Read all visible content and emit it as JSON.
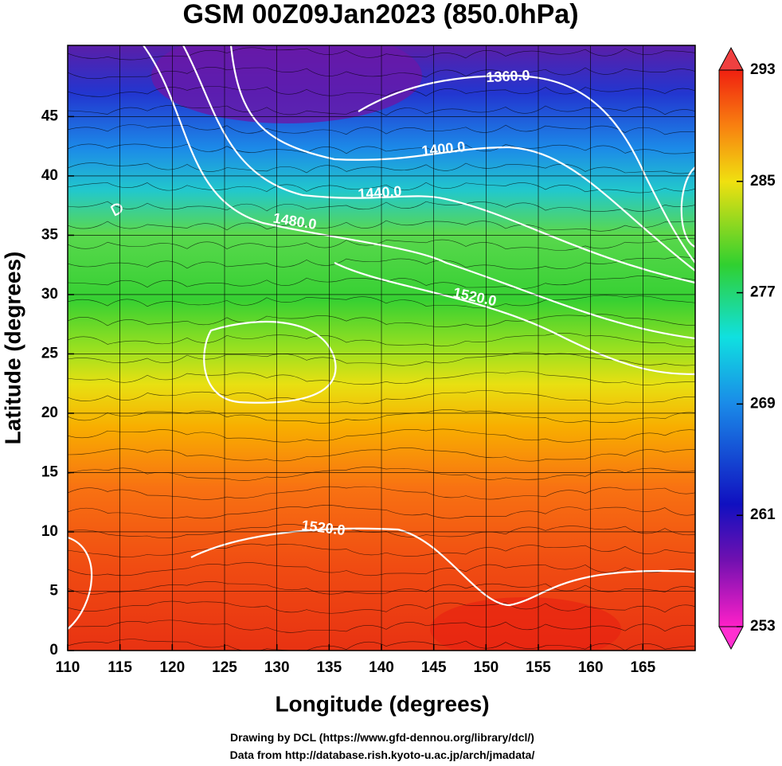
{
  "chart_data": {
    "type": "heatmap",
    "title": "GSM 00Z09Jan2023 (850.0hPa)",
    "x_label": "Longitude (degrees)",
    "y_label": "Latitude  (degrees)",
    "xlim": [
      110,
      170
    ],
    "xticks": [
      110,
      115,
      120,
      125,
      130,
      135,
      140,
      145,
      150,
      155,
      160,
      165
    ],
    "ylim": [
      0,
      51
    ],
    "yticks": [
      0,
      5,
      10,
      15,
      20,
      25,
      30,
      35,
      40,
      45
    ],
    "grid": true,
    "colorbar": {
      "lim": [
        253,
        293
      ],
      "ticks": [
        253,
        261,
        269,
        277,
        285,
        293
      ]
    },
    "contour_labels": [
      "1360.0",
      "1400.0",
      "1440.0",
      "1480.0",
      "1520.0",
      "1520.0"
    ],
    "footer": [
      "Drawing by DCL (https://www.gfd-dennou.org/library/dcl/)",
      "Data from http://database.rish.kyoto-u.ac.jp/arch/jmadata/"
    ]
  }
}
